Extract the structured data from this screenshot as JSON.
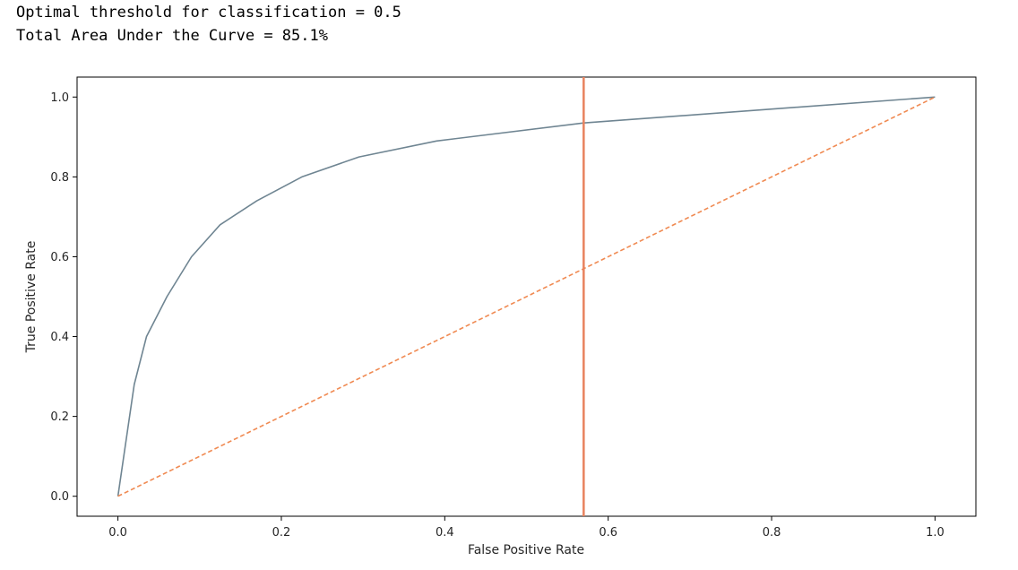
{
  "output_text": {
    "line1": "Optimal threshold for classification = 0.5",
    "line2": "Total Area Under the Curve = 85.1%"
  },
  "chart_data": {
    "type": "line",
    "title": "",
    "xlabel": "False Positive Rate",
    "ylabel": "True Positive Rate",
    "xlim": [
      -0.05,
      1.05
    ],
    "ylim": [
      -0.05,
      1.05
    ],
    "xticks": [
      0.0,
      0.2,
      0.4,
      0.6,
      0.8,
      1.0
    ],
    "xtick_labels": [
      "0.0",
      "0.2",
      "0.4",
      "0.6",
      "0.8",
      "1.0"
    ],
    "yticks": [
      0.0,
      0.2,
      0.4,
      0.6,
      0.8,
      1.0
    ],
    "ytick_labels": [
      "0.0",
      "0.2",
      "0.4",
      "0.6",
      "0.8",
      "1.0"
    ],
    "grid": false,
    "series": [
      {
        "style": "solid",
        "color": "#6f8592",
        "x": [
          0.0,
          0.02,
          0.035,
          0.06,
          0.09,
          0.125,
          0.17,
          0.225,
          0.295,
          0.39,
          0.57,
          1.0
        ],
        "y": [
          0.0,
          0.28,
          0.4,
          0.5,
          0.6,
          0.68,
          0.74,
          0.8,
          0.85,
          0.89,
          0.935,
          1.0
        ]
      },
      {
        "style": "dashed",
        "color": "#f08a52",
        "x": [
          0.0,
          1.0
        ],
        "y": [
          0.0,
          1.0
        ]
      }
    ],
    "vline": {
      "x": 0.57,
      "color": "#e8825e"
    }
  }
}
